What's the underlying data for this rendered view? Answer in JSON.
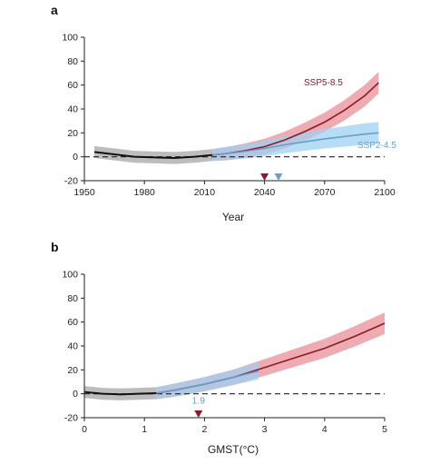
{
  "colors": {
    "historical": "#111111",
    "historical_band": "#bdbdbd",
    "ssp585": "#8b1a2a",
    "ssp585_band": "#ea8f98",
    "ssp245": "#6b9ec6",
    "ssp245_band": "#9fd0f3",
    "marker_red": "#8b1a2a",
    "marker_blue": "#6f9ec7"
  },
  "chart_data": [
    {
      "panel": "a",
      "type": "line",
      "xlabel": "Year",
      "ylabel": "",
      "xlim": [
        1950,
        2100
      ],
      "ylim": [
        -20,
        100
      ],
      "xticks": [
        1950,
        1980,
        2010,
        2040,
        2070,
        2100
      ],
      "yticks": [
        -20,
        0,
        20,
        40,
        60,
        80,
        100
      ],
      "reference_line": 0,
      "grid": false,
      "series": [
        {
          "key": "historical",
          "x": [
            1955,
            1965,
            1975,
            1985,
            1995,
            2005,
            2014
          ],
          "y": [
            4,
            2,
            0,
            -0.5,
            -1,
            0,
            1.5
          ],
          "band_width": [
            5,
            5,
            5,
            5,
            5,
            5,
            5
          ]
        },
        {
          "key": "ssp585",
          "name": "SSP5-8.5",
          "x": [
            2014,
            2020,
            2030,
            2040,
            2050,
            2060,
            2070,
            2080,
            2090,
            2097
          ],
          "y": [
            1.5,
            2.5,
            5,
            8.5,
            14,
            21,
            29,
            39,
            51,
            62
          ],
          "band_width": [
            5,
            5.5,
            6,
            6.5,
            7,
            7.5,
            8,
            8.5,
            9,
            9
          ]
        },
        {
          "key": "ssp245",
          "name": "SSP2-4.5",
          "x": [
            2014,
            2020,
            2030,
            2040,
            2050,
            2060,
            2070,
            2080,
            2090,
            2097
          ],
          "y": [
            1.5,
            2.5,
            4.5,
            7,
            10,
            12.5,
            15,
            17,
            19,
            20
          ],
          "band_width": [
            5,
            5.5,
            6,
            6.5,
            7,
            7.5,
            8,
            8.5,
            9,
            9
          ]
        }
      ],
      "markers": [
        {
          "x": 2040,
          "color_key": "marker_red"
        },
        {
          "x": 2047,
          "color_key": "marker_blue"
        }
      ]
    },
    {
      "panel": "b",
      "type": "line",
      "xlabel": "GMST(°C)",
      "ylabel": "",
      "xlim": [
        0,
        5
      ],
      "ylim": [
        -20,
        100
      ],
      "xticks": [
        0,
        1,
        2,
        3,
        4,
        5
      ],
      "yticks": [
        -20,
        0,
        20,
        40,
        60,
        80,
        100
      ],
      "reference_line": 0,
      "grid": false,
      "series": [
        {
          "key": "historical",
          "x": [
            0,
            0.3,
            0.6,
            0.9,
            1.2
          ],
          "y": [
            1.5,
            0,
            -0.5,
            0,
            0.5
          ],
          "band_width": [
            5,
            5,
            5,
            5,
            5
          ]
        },
        {
          "key": "ssp585",
          "x": [
            1.2,
            1.5,
            2,
            2.5,
            3,
            3.5,
            4,
            4.5,
            5
          ],
          "y": [
            0.5,
            3,
            8,
            14,
            22,
            30,
            38,
            48,
            59
          ],
          "band_width": [
            5,
            5.5,
            6,
            6.5,
            7,
            7.5,
            8,
            8.5,
            9
          ]
        },
        {
          "key": "ssp245",
          "x": [
            1.2,
            1.5,
            2,
            2.5,
            2.9
          ],
          "y": [
            0.5,
            3,
            8,
            14,
            19
          ],
          "band_width": [
            5,
            5.5,
            6,
            6.5,
            7
          ]
        }
      ],
      "markers": [
        {
          "x": 1.9,
          "color_key": "marker_red"
        }
      ],
      "annotations": [
        {
          "text": "1.9",
          "x": 1.9,
          "y": -5
        }
      ]
    }
  ]
}
